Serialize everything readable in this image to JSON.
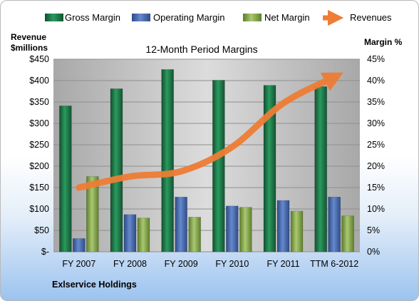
{
  "chart_data": {
    "type": "bar",
    "title": "12-Month Period Margins",
    "y_left_label": [
      "Revenue",
      "$millions"
    ],
    "y_right_label": "Margin %",
    "footer": "Exlservice Holdings",
    "categories": [
      "FY 2007",
      "FY 2008",
      "FY 2009",
      "FY 2010",
      "FY 2011",
      "TTM 6-2012"
    ],
    "y_left_ticks": [
      "$-",
      "$50",
      "$100",
      "$150",
      "$200",
      "$250",
      "$300",
      "$350",
      "$400",
      "$450"
    ],
    "y_right_ticks": [
      "0%",
      "5%",
      "10%",
      "15%",
      "20%",
      "25%",
      "30%",
      "35%",
      "40%",
      "45%"
    ],
    "ylim_left": [
      0,
      450
    ],
    "ylim_right": [
      0,
      45
    ],
    "grid": true,
    "legend_position": "top",
    "series": [
      {
        "name": "Gross Margin",
        "axis": "right",
        "kind": "bar",
        "color": "#1f7a4a",
        "values": [
          34.1,
          38.1,
          42.6,
          40.1,
          38.9,
          38.6
        ]
      },
      {
        "name": "Operating Margin",
        "axis": "right",
        "kind": "bar",
        "color": "#4a6db3",
        "values": [
          3.1,
          8.7,
          12.8,
          10.7,
          12.0,
          12.8
        ]
      },
      {
        "name": "Net Margin",
        "axis": "right",
        "kind": "bar",
        "color": "#8db050",
        "values": [
          17.6,
          7.9,
          8.1,
          10.4,
          9.5,
          8.4
        ]
      },
      {
        "name": "Revenues",
        "axis": "left",
        "kind": "line",
        "color": "#ee7d35",
        "values": [
          150,
          176,
          188,
          245,
          347,
          408
        ]
      }
    ]
  }
}
